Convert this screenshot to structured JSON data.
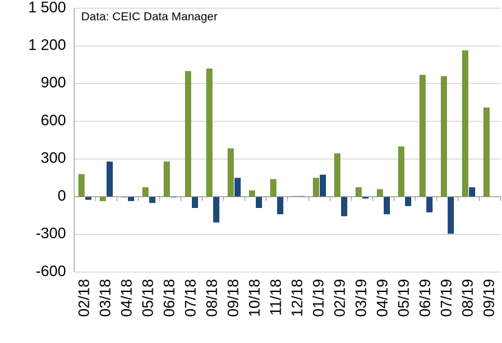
{
  "chart_data": {
    "type": "bar",
    "annotation": "Data: CEIC Data Manager",
    "categories": [
      "02/18",
      "03/18",
      "04/18",
      "05/18",
      "06/18",
      "07/18",
      "08/18",
      "09/18",
      "10/18",
      "11/18",
      "12/18",
      "01/19",
      "02/19",
      "03/19",
      "04/19",
      "05/19",
      "06/19",
      "07/19",
      "08/19",
      "09/19"
    ],
    "series": [
      {
        "color": "#77993a",
        "values": [
          180,
          -35,
          0,
          75,
          280,
          1000,
          1020,
          385,
          50,
          140,
          5,
          150,
          345,
          75,
          60,
          400,
          970,
          960,
          1165,
          710
        ]
      },
      {
        "color": "#1f497d",
        "values": [
          -25,
          280,
          -35,
          -50,
          0,
          -90,
          -205,
          150,
          -90,
          -140,
          5,
          175,
          -155,
          -15,
          -140,
          -75,
          -125,
          -295,
          75,
          null
        ]
      }
    ],
    "ylim": [
      -600,
      1500
    ],
    "yticks": [
      {
        "value": 1500,
        "label": "1 500"
      },
      {
        "value": 1200,
        "label": "1 200"
      },
      900,
      600,
      300,
      0,
      -300,
      -600
    ],
    "grid": true
  }
}
